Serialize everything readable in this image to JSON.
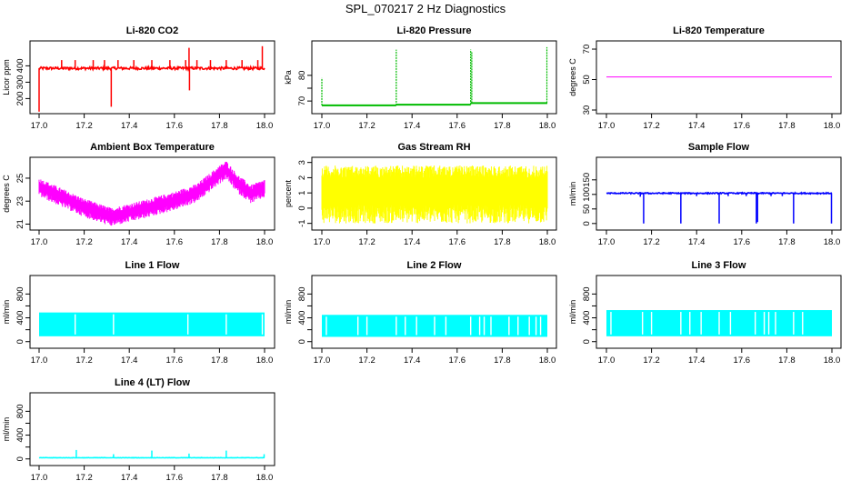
{
  "figure_title": "SPL_070217  2 Hz Diagnostics",
  "chart_data": [
    {
      "id": "co2",
      "type": "line",
      "title": "Li-820 CO2",
      "ylabel": "Licor ppm",
      "color": "#ff0000",
      "xlim": [
        17.0,
        18.0
      ],
      "ylim": [
        130,
        530
      ],
      "x_ticks": [
        17.0,
        17.2,
        17.4,
        17.6,
        17.8,
        18.0
      ],
      "y_ticks": [
        200,
        300,
        400
      ],
      "series": {
        "kind": "spiky",
        "base": 385,
        "noise": 8,
        "spikes": [
          [
            17.0,
            120
          ],
          [
            17.1,
            435
          ],
          [
            17.16,
            435
          ],
          [
            17.24,
            435
          ],
          [
            17.29,
            435
          ],
          [
            17.32,
            150
          ],
          [
            17.35,
            435
          ],
          [
            17.42,
            435
          ],
          [
            17.5,
            435
          ],
          [
            17.58,
            435
          ],
          [
            17.65,
            435
          ],
          [
            17.665,
            510
          ],
          [
            17.667,
            250
          ],
          [
            17.7,
            435
          ],
          [
            17.76,
            435
          ],
          [
            17.83,
            435
          ],
          [
            17.9,
            435
          ],
          [
            17.97,
            435
          ],
          [
            17.99,
            520
          ]
        ]
      }
    },
    {
      "id": "pressure",
      "type": "line",
      "title": "Li-820 Pressure",
      "ylabel": "kPa",
      "color": "#00bb00",
      "xlim": [
        17.0,
        18.0
      ],
      "ylim": [
        66.5,
        92
      ],
      "x_ticks": [
        17.0,
        17.2,
        17.4,
        17.6,
        17.8,
        18.0
      ],
      "y_ticks": [
        70,
        75,
        80
      ],
      "y_tick_labels": [
        "70",
        "",
        "80"
      ],
      "series": {
        "kind": "steps",
        "segments": [
          [
            17.0,
            17.33,
            68.3
          ],
          [
            17.33,
            17.66,
            68.6
          ],
          [
            17.66,
            18.0,
            69.2
          ]
        ],
        "spikes": [
          [
            17.0,
            79
          ],
          [
            17.33,
            90
          ],
          [
            17.66,
            90
          ],
          [
            17.665,
            89
          ],
          [
            17.998,
            91
          ]
        ]
      }
    },
    {
      "id": "temp",
      "type": "line",
      "title": "Li-820 Temperature",
      "ylabel": "degrees C",
      "color": "#ff00ff",
      "xlim": [
        17.0,
        18.0
      ],
      "ylim": [
        30,
        73
      ],
      "x_ticks": [
        17.0,
        17.2,
        17.4,
        17.6,
        17.8,
        18.0
      ],
      "y_ticks": [
        30,
        50,
        70
      ],
      "series": {
        "kind": "flat",
        "value": 51.7
      }
    },
    {
      "id": "boxtemp",
      "type": "line",
      "title": "Ambient Box Temperature",
      "ylabel": "degrees C",
      "color": "#ff00ff",
      "xlim": [
        17.0,
        18.0
      ],
      "ylim": [
        20.8,
        26.5
      ],
      "x_ticks": [
        17.0,
        17.2,
        17.4,
        17.6,
        17.8,
        18.0
      ],
      "y_ticks": [
        21,
        23,
        25
      ],
      "series": {
        "kind": "band",
        "noise": 0.9,
        "curve": [
          [
            17.0,
            24.3
          ],
          [
            17.2,
            22.5
          ],
          [
            17.32,
            21.7
          ],
          [
            17.45,
            22.3
          ],
          [
            17.6,
            23.1
          ],
          [
            17.7,
            23.8
          ],
          [
            17.8,
            25.4
          ],
          [
            17.83,
            25.8
          ],
          [
            17.88,
            24.6
          ],
          [
            17.94,
            23.7
          ],
          [
            18.0,
            24.2
          ]
        ]
      }
    },
    {
      "id": "rh",
      "type": "line",
      "title": "Gas Stream RH",
      "ylabel": "percent",
      "color": "#ffff00",
      "xlim": [
        17.0,
        18.0
      ],
      "ylim": [
        -1.2,
        3.1
      ],
      "x_ticks": [
        17.0,
        17.2,
        17.4,
        17.6,
        17.8,
        18.0
      ],
      "y_ticks": [
        -1,
        0,
        1,
        2,
        3
      ],
      "series": {
        "kind": "noise",
        "low": -1.0,
        "high": 2.8
      }
    },
    {
      "id": "sampleflow",
      "type": "line",
      "title": "Sample Flow",
      "ylabel": "ml/min",
      "color": "#0000ff",
      "xlim": [
        17.0,
        18.0
      ],
      "ylim": [
        -10,
        215
      ],
      "x_ticks": [
        17.0,
        17.2,
        17.4,
        17.6,
        17.8,
        18.0
      ],
      "y_ticks": [
        0,
        50,
        100,
        150
      ],
      "series": {
        "kind": "spiky",
        "base": 104,
        "noise": 2,
        "spikes": [
          [
            17.165,
            0
          ],
          [
            17.33,
            0
          ],
          [
            17.5,
            0
          ],
          [
            17.665,
            0
          ],
          [
            17.67,
            5
          ],
          [
            17.83,
            0
          ],
          [
            17.998,
            0
          ],
          [
            17.15,
            92
          ],
          [
            17.4,
            94
          ],
          [
            17.54,
            94
          ],
          [
            17.62,
            94
          ],
          [
            17.73,
            94
          ],
          [
            17.78,
            94
          ]
        ]
      }
    },
    {
      "id": "line1",
      "type": "area",
      "title": "Line 1 Flow",
      "ylabel": "ml/min",
      "color": "#00ffff",
      "xlim": [
        17.0,
        18.0
      ],
      "ylim": [
        -50,
        1050
      ],
      "x_ticks": [
        17.0,
        17.2,
        17.4,
        17.6,
        17.8,
        18.0
      ],
      "y_ticks": [
        0,
        400,
        800
      ],
      "y_minor_ticks": [
        200,
        600
      ],
      "series": {
        "kind": "block",
        "low": 90,
        "high": 490,
        "gaps": [
          17.16,
          17.33,
          17.66,
          17.83,
          17.99
        ]
      }
    },
    {
      "id": "line2",
      "type": "area",
      "title": "Line 2 Flow",
      "ylabel": "ml/min",
      "color": "#00ffff",
      "xlim": [
        17.0,
        18.0
      ],
      "ylim": [
        -50,
        1050
      ],
      "x_ticks": [
        17.0,
        17.2,
        17.4,
        17.6,
        17.8,
        18.0
      ],
      "y_ticks": [
        0,
        400,
        800
      ],
      "y_minor_ticks": [
        200,
        600
      ],
      "series": {
        "kind": "block",
        "low": 80,
        "high": 450,
        "gaps": [
          17.02,
          17.16,
          17.2,
          17.33,
          17.37,
          17.42,
          17.5,
          17.55,
          17.66,
          17.7,
          17.72,
          17.75,
          17.83,
          17.87,
          17.92,
          17.95,
          17.97
        ]
      }
    },
    {
      "id": "line3",
      "type": "area",
      "title": "Line 3 Flow",
      "ylabel": "ml/min",
      "color": "#00ffff",
      "xlim": [
        17.0,
        18.0
      ],
      "ylim": [
        -50,
        1050
      ],
      "x_ticks": [
        17.0,
        17.2,
        17.4,
        17.6,
        17.8,
        18.0
      ],
      "y_ticks": [
        0,
        400,
        800
      ],
      "y_minor_ticks": [
        200,
        600
      ],
      "series": {
        "kind": "block",
        "low": 90,
        "high": 530,
        "gaps": [
          17.02,
          17.16,
          17.2,
          17.33,
          17.37,
          17.42,
          17.5,
          17.55,
          17.66,
          17.7,
          17.72,
          17.75,
          17.83,
          17.87
        ]
      }
    },
    {
      "id": "line4",
      "type": "line",
      "title": "Line 4 (LT) Flow",
      "ylabel": "ml/min",
      "color": "#00ffff",
      "xlim": [
        17.0,
        18.0
      ],
      "ylim": [
        -50,
        1050
      ],
      "x_ticks": [
        17.0,
        17.2,
        17.4,
        17.6,
        17.8,
        18.0
      ],
      "y_ticks": [
        0,
        400,
        800
      ],
      "y_minor_ticks": [
        200,
        600
      ],
      "series": {
        "kind": "spiky",
        "base": 20,
        "noise": 3,
        "spikes": [
          [
            17.165,
            150
          ],
          [
            17.33,
            80
          ],
          [
            17.5,
            140
          ],
          [
            17.665,
            90
          ],
          [
            17.83,
            140
          ],
          [
            17.998,
            80
          ]
        ]
      }
    }
  ]
}
